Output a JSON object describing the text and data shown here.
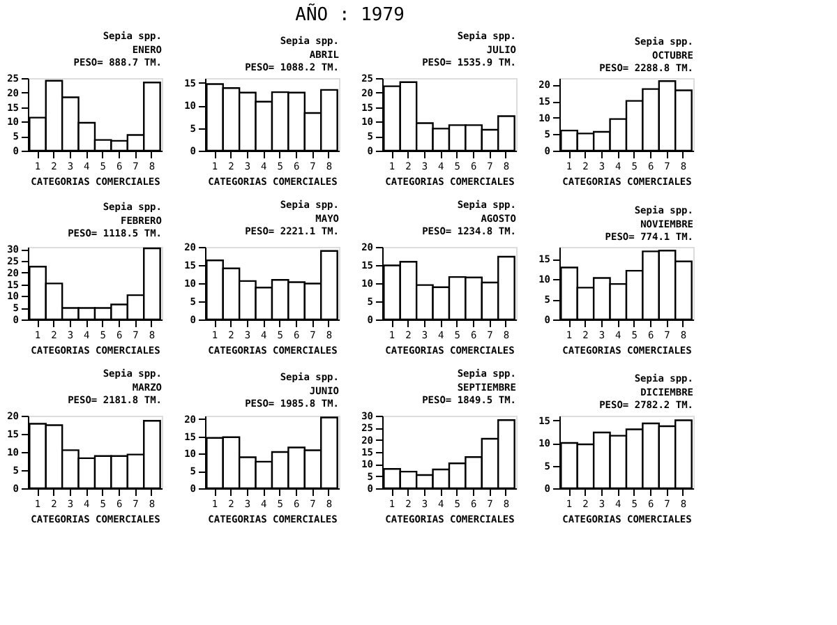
{
  "chart_data": [
    {
      "type": "other",
      "title": "AÑO : 1979"
    },
    {
      "type": "bar",
      "title": "Sepia spp.",
      "subtitle": "ENERO",
      "annotations": [
        "PESO=   888.7 TM."
      ],
      "xlabel": "CATEGORIAS COMERCIALES",
      "categories": [
        "1",
        "2",
        "3",
        "4",
        "5",
        "6",
        "7",
        "8"
      ],
      "values": [
        11.4,
        24.1,
        18.4,
        9.6,
        3.7,
        3.4,
        5.4,
        23.5
      ],
      "color": "#ffffff",
      "ylim": [
        0,
        25
      ],
      "yticks": [
        0,
        5,
        10,
        15,
        20,
        25
      ],
      "grid": false
    },
    {
      "type": "bar",
      "title": "Sepia spp.",
      "subtitle": "ABRIL",
      "annotations": [
        "PESO=  1088.2 TM."
      ],
      "xlabel": "CATEGORIAS COMERCIALES",
      "categories": [
        "1",
        "2",
        "3",
        "4",
        "5",
        "6",
        "7",
        "8"
      ],
      "values": [
        14.7,
        13.8,
        12.8,
        10.8,
        12.9,
        12.8,
        8.3,
        13.4
      ],
      "color": "#ffffff",
      "ylim": [
        0,
        16
      ],
      "yticks": [
        0,
        5,
        10,
        15
      ],
      "grid": false
    },
    {
      "type": "bar",
      "title": "Sepia spp.",
      "subtitle": "JULIO",
      "annotations": [
        "PESO=  1535.9 TM."
      ],
      "xlabel": "CATEGORIAS COMERCIALES",
      "categories": [
        "1",
        "2",
        "3",
        "4",
        "5",
        "6",
        "7",
        "8"
      ],
      "values": [
        22.2,
        23.6,
        9.5,
        7.6,
        8.8,
        8.8,
        7.2,
        11.9
      ],
      "color": "#ffffff",
      "ylim": [
        0,
        25
      ],
      "yticks": [
        0,
        5,
        10,
        15,
        20,
        25
      ],
      "grid": false
    },
    {
      "type": "bar",
      "title": "Sepia spp.",
      "subtitle": "OCTUBRE",
      "annotations": [
        "PESO=  2288.8 TM."
      ],
      "xlabel": "CATEGORIAS COMERCIALES",
      "categories": [
        "1",
        "2",
        "3",
        "4",
        "5",
        "6",
        "7",
        "8"
      ],
      "values": [
        6.1,
        5.2,
        5.7,
        9.6,
        15.1,
        18.7,
        21.1,
        18.3
      ],
      "color": "#ffffff",
      "ylim": [
        0,
        22
      ],
      "yticks": [
        0,
        5,
        10,
        15,
        20
      ],
      "grid": false
    },
    {
      "type": "bar",
      "title": "Sepia spp.",
      "subtitle": "FEBRERO",
      "annotations": [
        "PESO=  1118.5 TM."
      ],
      "xlabel": "CATEGORIAS COMERCIALES",
      "categories": [
        "1",
        "2",
        "3",
        "4",
        "5",
        "6",
        "7",
        "8"
      ],
      "values": [
        22.6,
        15.4,
        4.9,
        4.9,
        4.9,
        6.4,
        10.4,
        30.4
      ],
      "color": "#ffffff",
      "ylim": [
        0,
        31
      ],
      "yticks": [
        0,
        5,
        10,
        15,
        20,
        25,
        30
      ],
      "grid": false
    },
    {
      "type": "bar",
      "title": "Sepia spp.",
      "subtitle": "MAYO",
      "annotations": [
        "PESO=  2221.1 TM."
      ],
      "xlabel": "CATEGORIAS COMERCIALES",
      "categories": [
        "1",
        "2",
        "3",
        "4",
        "5",
        "6",
        "7",
        "8"
      ],
      "values": [
        16.3,
        14.1,
        10.6,
        8.8,
        10.9,
        10.3,
        9.9,
        18.9
      ],
      "color": "#ffffff",
      "ylim": [
        0,
        20
      ],
      "yticks": [
        0,
        5,
        10,
        15,
        20
      ],
      "grid": false
    },
    {
      "type": "bar",
      "title": "Sepia spp.",
      "subtitle": "AGOSTO",
      "annotations": [
        "PESO=  1234.8 TM."
      ],
      "xlabel": "CATEGORIAS COMERCIALES",
      "categories": [
        "1",
        "2",
        "3",
        "4",
        "5",
        "6",
        "7",
        "8"
      ],
      "values": [
        14.9,
        15.9,
        9.5,
        8.9,
        11.7,
        11.6,
        10.2,
        17.3
      ],
      "color": "#ffffff",
      "ylim": [
        0,
        20
      ],
      "yticks": [
        0,
        5,
        10,
        15,
        20
      ],
      "grid": false
    },
    {
      "type": "bar",
      "title": "Sepia spp.",
      "subtitle": "NOVIEMBRE",
      "annotations": [
        "PESO=   774.1 TM."
      ],
      "xlabel": "CATEGORIAS COMERCIALES",
      "categories": [
        "1",
        "2",
        "3",
        "4",
        "5",
        "6",
        "7",
        "8"
      ],
      "values": [
        12.9,
        7.9,
        10.3,
        8.8,
        12.1,
        16.9,
        17.1,
        14.4
      ],
      "color": "#ffffff",
      "ylim": [
        0,
        18
      ],
      "yticks": [
        0,
        5,
        10,
        15
      ],
      "grid": false
    },
    {
      "type": "bar",
      "title": "Sepia spp.",
      "subtitle": "MARZO",
      "annotations": [
        "PESO=  2181.8 TM."
      ],
      "xlabel": "CATEGORIAS COMERCIALES",
      "categories": [
        "1",
        "2",
        "3",
        "4",
        "5",
        "6",
        "7",
        "8"
      ],
      "values": [
        17.8,
        17.4,
        10.5,
        8.3,
        8.9,
        8.9,
        9.3,
        18.6
      ],
      "color": "#ffffff",
      "ylim": [
        0,
        20
      ],
      "yticks": [
        0,
        5,
        10,
        15,
        20
      ],
      "grid": false
    },
    {
      "type": "bar",
      "title": "Sepia spp.",
      "subtitle": "JUNIO",
      "annotations": [
        "PESO=  1985.8 TM."
      ],
      "xlabel": "CATEGORIAS COMERCIALES",
      "categories": [
        "1",
        "2",
        "3",
        "4",
        "5",
        "6",
        "7",
        "8"
      ],
      "values": [
        14.6,
        14.8,
        9.0,
        7.7,
        10.5,
        11.8,
        11.0,
        20.5
      ],
      "color": "#ffffff",
      "ylim": [
        0,
        21
      ],
      "yticks": [
        0,
        5,
        10,
        15,
        20
      ],
      "grid": false
    },
    {
      "type": "bar",
      "title": "Sepia spp.",
      "subtitle": "SEPTIEMBRE",
      "annotations": [
        "PESO=  1849.5 TM."
      ],
      "xlabel": "CATEGORIAS COMERCIALES",
      "categories": [
        "1",
        "2",
        "3",
        "4",
        "5",
        "6",
        "7",
        "8"
      ],
      "values": [
        8.0,
        6.9,
        5.5,
        7.8,
        10.3,
        12.9,
        20.5,
        28.2
      ],
      "color": "#ffffff",
      "ylim": [
        0,
        30
      ],
      "yticks": [
        0,
        5,
        10,
        15,
        20,
        25,
        30
      ],
      "grid": false
    },
    {
      "type": "bar",
      "title": "Sepia spp.",
      "subtitle": "DICIEMBRE",
      "annotations": [
        "PESO=  2782.2 TM."
      ],
      "xlabel": "CATEGORIAS COMERCIALES",
      "categories": [
        "1",
        "2",
        "3",
        "4",
        "5",
        "6",
        "7",
        "8"
      ],
      "values": [
        10.0,
        9.7,
        12.3,
        11.6,
        13.0,
        14.3,
        13.7,
        15.0
      ],
      "color": "#ffffff",
      "ylim": [
        0,
        16
      ],
      "yticks": [
        0,
        5,
        10,
        15
      ],
      "grid": false
    }
  ]
}
